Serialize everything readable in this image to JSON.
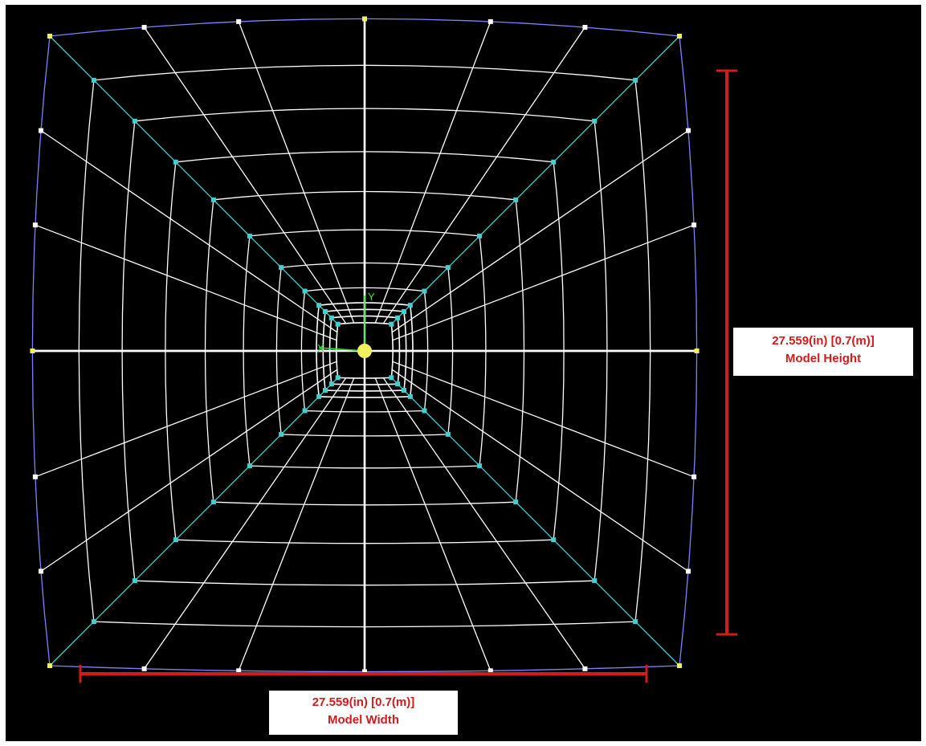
{
  "width_annotation": {
    "value": "27.559(in) [0.7(m)]",
    "label": "Model Width"
  },
  "height_annotation": {
    "value": "27.559(in) [0.7(m)]",
    "label": "Model Height"
  },
  "axis_labels": {
    "x": "X",
    "y": "Y"
  },
  "colors": {
    "background": "#000000",
    "mesh_lines": "#ffffff",
    "diagonal_lines": "#40d0d0",
    "outer_edge": "#8080ff",
    "corner_nodes": "#f0f060",
    "dimension_lines": "#d21c1c",
    "dimension_text": "#d21c1c"
  }
}
